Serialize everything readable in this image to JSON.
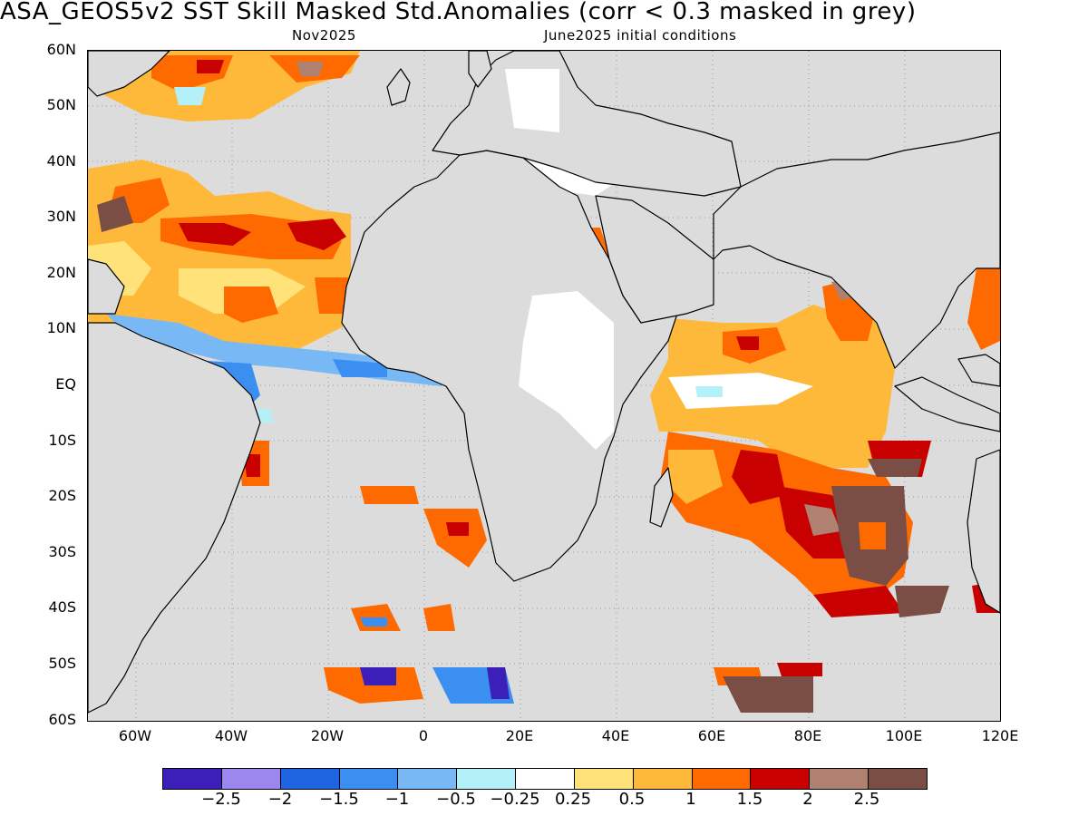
{
  "header": {
    "title": "ASA_GEOS5v2  SST Skill Masked Std.Anomalies (corr < 0.3 masked in grey)",
    "valid_month": "Nov2025",
    "init": "June2025 initial conditions"
  },
  "axes": {
    "lat_labels": [
      "60N",
      "50N",
      "40N",
      "30N",
      "20N",
      "10N",
      "EQ",
      "10S",
      "20S",
      "30S",
      "40S",
      "50S",
      "60S"
    ],
    "lon_labels": [
      "60W",
      "40W",
      "20W",
      "0",
      "20E",
      "40E",
      "60E",
      "80E",
      "100E",
      "120E"
    ]
  },
  "colorbar": {
    "colors": [
      "#3b1fb8",
      "#9b87ee",
      "#1f64e0",
      "#3b8ff0",
      "#78b9f5",
      "#b4f0f8",
      "#ffffff",
      "#ffe27a",
      "#ffb93a",
      "#ff6a00",
      "#c80000",
      "#b08070",
      "#7a4e44"
    ],
    "labels": [
      "−2.5",
      "−2",
      "−1.5",
      "−1",
      "−0.5",
      "−0.25",
      "0.25",
      "0.5",
      "1",
      "1.5",
      "2",
      "2.5"
    ]
  },
  "map_colors": {
    "masked": "#dcdcdc",
    "land": "#dcdcdc",
    "coast": "#000000"
  }
}
